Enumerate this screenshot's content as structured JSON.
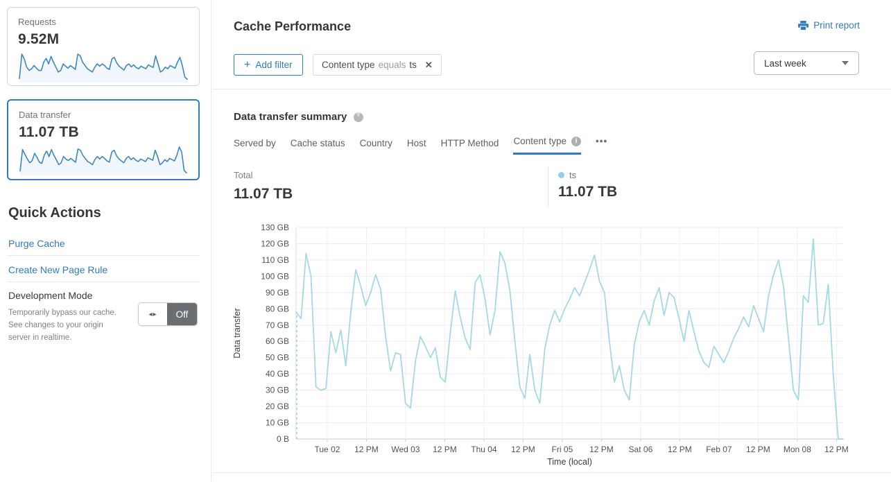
{
  "sidebar": {
    "requests_card": {
      "label": "Requests",
      "value": "9.52M"
    },
    "data_transfer_card": {
      "label": "Data transfer",
      "value": "11.07 TB"
    },
    "quick_actions": {
      "title": "Quick Actions",
      "links": [
        "Purge Cache",
        "Create New Page Rule"
      ]
    },
    "development_mode": {
      "title": "Development Mode",
      "description": "Temporarily bypass our cache. See changes to your origin server in realtime.",
      "toggle_state": "Off"
    }
  },
  "header": {
    "title": "Cache Performance",
    "print_label": "Print report"
  },
  "filters": {
    "add_filter_label": "Add filter",
    "chip": {
      "field": "Content type",
      "operator": "equals",
      "value": "ts",
      "close": "✕"
    },
    "time_range": "Last week"
  },
  "summary": {
    "title": "Data transfer summary",
    "tabs": [
      "Served by",
      "Cache status",
      "Country",
      "Host",
      "HTTP Method",
      "Content type"
    ],
    "active_tab": "Content type",
    "more_label": "•••",
    "total_label": "Total",
    "total_value": "11.07 TB",
    "legend": {
      "name": "ts",
      "value": "11.07 TB"
    }
  },
  "colors": {
    "accent_blue": "#2f7bbf",
    "sparkline_blue": "#3e86c4",
    "chart_line": "#a5d8e5",
    "legend_dot": "#8ed1e1"
  },
  "chart_data": {
    "type": "line",
    "title": "Data transfer summary — Content type: ts",
    "xlabel": "Time (local)",
    "ylabel": "Data transfer",
    "ylim": [
      0,
      130
    ],
    "unit": "GB",
    "grid": true,
    "yticks": [
      "0 B",
      "10 GB",
      "20 GB",
      "30 GB",
      "40 GB",
      "50 GB",
      "60 GB",
      "70 GB",
      "80 GB",
      "90 GB",
      "100 GB",
      "110 GB",
      "120 GB",
      "130 GB"
    ],
    "xticks": [
      "Tue 02",
      "12 PM",
      "Wed 03",
      "12 PM",
      "Thu 04",
      "12 PM",
      "Fri 05",
      "12 PM",
      "Sat 06",
      "12 PM",
      "Feb 07",
      "12 PM",
      "Mon 08",
      "12 PM"
    ],
    "xtick_first_frac": 0.057,
    "xtick_step_frac": 0.0716,
    "dashed_start_from_zero": true,
    "series": [
      {
        "name": "ts",
        "total": "11.07 TB",
        "values_gb": [
          78,
          74,
          114,
          100,
          32,
          30,
          31,
          66,
          53,
          67,
          45,
          78,
          104,
          94,
          82,
          90,
          101,
          92,
          63,
          42,
          53,
          52,
          22,
          19,
          48,
          63,
          57,
          50,
          56,
          38,
          35,
          65,
          91,
          75,
          62,
          55,
          96,
          101,
          86,
          64,
          79,
          115,
          108,
          91,
          60,
          32,
          25,
          52,
          30,
          22,
          55,
          70,
          79,
          72,
          80,
          86,
          93,
          88,
          96,
          104,
          113,
          97,
          90,
          60,
          35,
          45,
          30,
          24,
          58,
          72,
          79,
          70,
          85,
          93,
          76,
          90,
          87,
          74,
          60,
          79,
          66,
          54,
          47,
          44,
          57,
          52,
          47,
          54,
          62,
          68,
          75,
          69,
          82,
          74,
          66,
          88,
          101,
          110,
          94,
          62,
          30,
          24,
          88,
          84,
          123,
          70,
          71,
          95,
          40,
          0,
          0
        ]
      }
    ],
    "sparklines": {
      "requests": [
        10,
        85,
        70,
        45,
        35,
        40,
        50,
        42,
        35,
        35,
        60,
        72,
        55,
        78,
        60,
        45,
        30,
        35,
        55,
        48,
        42,
        50,
        44,
        38,
        85,
        80,
        60,
        50,
        40,
        35,
        30,
        45,
        55,
        48,
        55,
        50,
        42,
        38,
        70,
        75,
        58,
        48,
        42,
        36,
        50,
        55,
        46,
        52,
        44,
        40,
        48,
        44,
        40,
        52,
        48,
        44,
        80,
        55,
        30,
        35,
        45,
        40,
        50,
        46,
        42,
        60,
        75,
        50,
        15,
        8
      ],
      "data_transfer": [
        12,
        80,
        65,
        50,
        38,
        45,
        68,
        55,
        40,
        36,
        62,
        75,
        58,
        80,
        62,
        48,
        32,
        38,
        58,
        50,
        45,
        52,
        46,
        40,
        82,
        78,
        62,
        52,
        42,
        38,
        32,
        48,
        58,
        50,
        58,
        52,
        44,
        40,
        72,
        78,
        60,
        50,
        44,
        38,
        52,
        58,
        48,
        54,
        46,
        42,
        50,
        46,
        42,
        54,
        50,
        46,
        78,
        58,
        32,
        38,
        48,
        42,
        52,
        48,
        44,
        62,
        88,
        72,
        14,
        6
      ]
    }
  }
}
